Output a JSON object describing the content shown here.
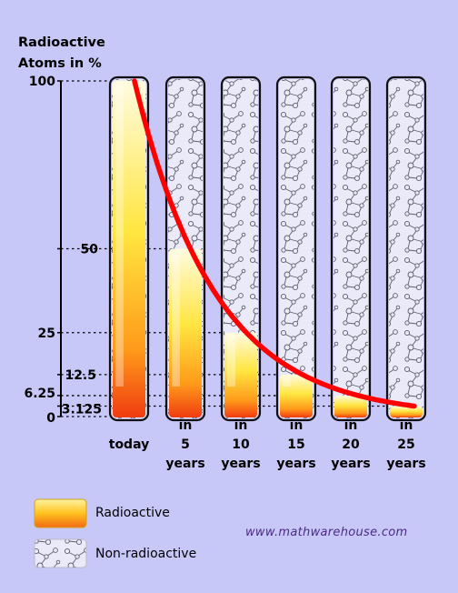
{
  "chart_data": {
    "type": "bar",
    "ylabel_line1": "Radioactive",
    "ylabel_line2": "Atoms in %",
    "ylim": [
      0,
      100
    ],
    "yticks": [
      "100",
      "50",
      "25",
      "12.5",
      "6.25",
      "3.125",
      "0"
    ],
    "ytick_values": [
      100,
      50,
      25,
      12.5,
      6.25,
      3.125,
      0
    ],
    "categories": [
      [
        "today"
      ],
      [
        "in",
        "5",
        "years"
      ],
      [
        "in",
        "10",
        "years"
      ],
      [
        "in",
        "15",
        "years"
      ],
      [
        "in",
        "20",
        "years"
      ],
      [
        "in",
        "25",
        "years"
      ]
    ],
    "values": [
      100,
      50,
      25,
      12.5,
      6.25,
      3.125
    ],
    "grid": "dotted lines at tick values",
    "curve": "exponential decay",
    "legend_placement": "bottom-left"
  },
  "legend": {
    "radioactive": "Radioactive",
    "non_radioactive": "Non-radioactive"
  },
  "watermark": "www.mathwarehouse.com",
  "colors": {
    "background": "#c8c8f8",
    "curve": "#ff0000",
    "fill_top": "#fffad0",
    "fill_mid": "#ffd21e",
    "fill_bottom": "#f03c10",
    "tube_border": "#111111",
    "molecule": "#6a6a78"
  }
}
